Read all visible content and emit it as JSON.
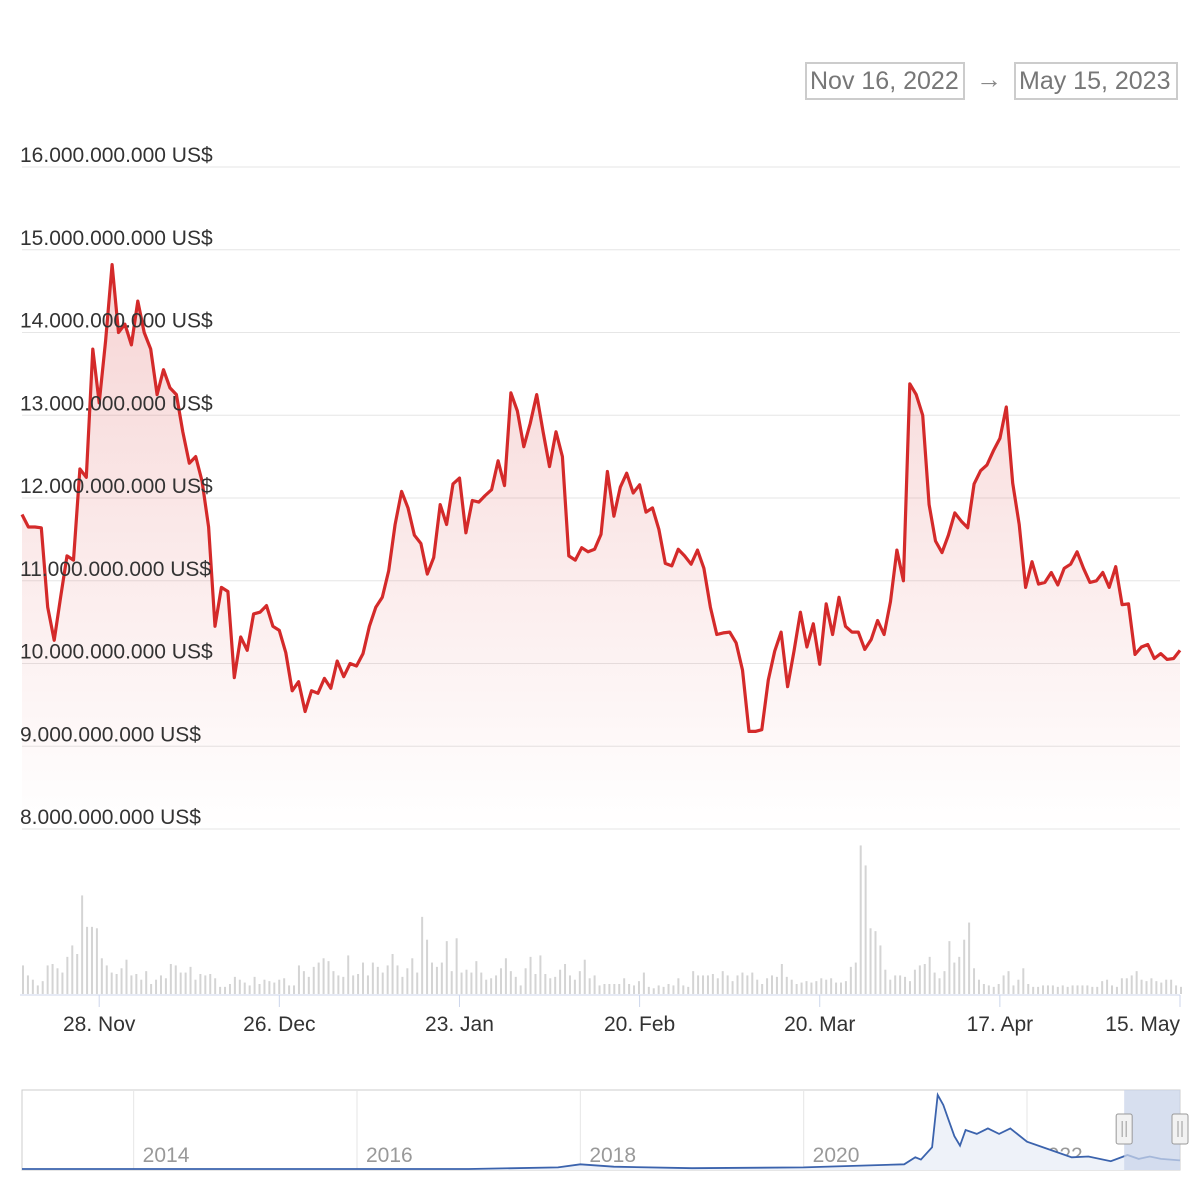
{
  "range_selector": {
    "from": "Nov 16, 2022",
    "arrow": "→",
    "to": "May 15, 2023"
  },
  "colors": {
    "price_line": "#d42a2a",
    "price_fill": "#d42a2a",
    "volume_bars": "#d4d4d4",
    "navigator_line": "#3b63ad",
    "navigator_selection": "#c9d4ea",
    "gridline": "#e6e6e6",
    "axis_text": "#333333",
    "navigator_text": "#999999"
  },
  "chart_data": {
    "type": "line",
    "x_start": "2022-11-16",
    "x_end": "2023-05-15",
    "ylim": [
      8000000000,
      16000000000
    ],
    "y_ticks": [
      "8.000.000.000 US$",
      "9.000.000.000 US$",
      "10.000.000.000 US$",
      "11.000.000.000 US$",
      "12.000.000.000 US$",
      "13.000.000.000 US$",
      "14.000.000.000 US$",
      "15.000.000.000 US$",
      "16.000.000.000 US$"
    ],
    "y_tick_values": [
      8000000000,
      9000000000,
      10000000000,
      11000000000,
      12000000000,
      13000000000,
      14000000000,
      15000000000,
      16000000000
    ],
    "x_ticks": [
      {
        "label": "28. Nov",
        "date": "2022-11-28"
      },
      {
        "label": "26. Dec",
        "date": "2022-12-26"
      },
      {
        "label": "23. Jan",
        "date": "2023-01-23"
      },
      {
        "label": "20. Feb",
        "date": "2023-02-20"
      },
      {
        "label": "20. Mar",
        "date": "2023-03-20"
      },
      {
        "label": "17. Apr",
        "date": "2023-04-17"
      },
      {
        "label": "15. May",
        "date": "2023-05-15"
      }
    ],
    "grid": true,
    "legend": "none",
    "series": [
      {
        "values": [
          11.8,
          11.65,
          11.65,
          11.64,
          10.68,
          10.28,
          10.8,
          11.3,
          11.25,
          12.35,
          12.25,
          13.8,
          13.15,
          13.9,
          14.82,
          14.0,
          14.1,
          13.85,
          14.38,
          14.0,
          13.8,
          13.25,
          13.55,
          13.33,
          13.25,
          12.8,
          12.42,
          12.5,
          12.2,
          11.65,
          10.45,
          10.92,
          10.87,
          9.83,
          10.32,
          10.16,
          10.6,
          10.62,
          10.7,
          10.45,
          10.4,
          10.13,
          9.67,
          9.78,
          9.42,
          9.67,
          9.64,
          9.82,
          9.7,
          10.03,
          9.84,
          10.0,
          9.97,
          10.12,
          10.45,
          10.68,
          10.8,
          11.12,
          11.68,
          12.08,
          11.88,
          11.55,
          11.45,
          11.08,
          11.28,
          11.92,
          11.68,
          12.17,
          12.24,
          11.58,
          11.97,
          11.95,
          12.03,
          12.1,
          12.45,
          12.15,
          13.27,
          13.05,
          12.62,
          12.9,
          13.25,
          12.8,
          12.38,
          12.8,
          12.5,
          11.3,
          11.25,
          11.4,
          11.35,
          11.38,
          11.56,
          12.32,
          11.78,
          12.13,
          12.3,
          12.06,
          12.16,
          11.83,
          11.88,
          11.62,
          11.21,
          11.18,
          11.38,
          11.3,
          11.2,
          11.37,
          11.15,
          10.68,
          10.35,
          10.37,
          10.38,
          10.25,
          9.92,
          9.18,
          9.18,
          9.2,
          9.8,
          10.15,
          10.38,
          9.72,
          10.15,
          10.62,
          10.2,
          10.48,
          9.99,
          10.72,
          10.35,
          10.8,
          10.45,
          10.38,
          10.38,
          10.17,
          10.29,
          10.52,
          10.35,
          10.75,
          11.37,
          11.0,
          13.38,
          13.25,
          13.0,
          11.92,
          11.48,
          11.34,
          11.55,
          11.82,
          11.72,
          11.64,
          12.17,
          12.33,
          12.4,
          12.57,
          12.72,
          13.1,
          12.18,
          11.68,
          10.92,
          11.23,
          10.96,
          10.98,
          11.1,
          10.95,
          11.15,
          11.2,
          11.35,
          11.15,
          10.98,
          11.0,
          11.1,
          10.92,
          11.17,
          10.71,
          10.72,
          10.11,
          10.2,
          10.23,
          10.06,
          10.12,
          10.05,
          10.06,
          10.16
        ]
      }
    ],
    "value_unit": 1000000000,
    "volume": {
      "values": [
        2.0,
        1.3,
        1.0,
        0.6,
        0.9,
        2.0,
        2.1,
        1.8,
        1.5,
        2.6,
        3.4,
        2.8,
        6.9,
        4.7,
        4.7,
        4.6,
        2.5,
        2.0,
        1.5,
        1.4,
        1.8,
        2.4,
        1.3,
        1.4,
        1.0,
        1.6,
        0.7,
        1.0,
        1.3,
        1.1,
        2.1,
        2.0,
        1.5,
        1.5,
        1.9,
        1.0,
        1.4,
        1.3,
        1.4,
        1.1,
        0.5,
        0.5,
        0.7,
        1.2,
        1.0,
        0.8,
        0.6,
        1.2,
        0.7,
        1.0,
        0.9,
        0.8,
        1.0,
        1.1,
        0.6,
        0.6,
        2.0,
        1.6,
        1.2,
        1.9,
        2.2,
        2.5,
        2.3,
        1.6,
        1.3,
        1.2,
        2.7,
        1.3,
        1.4,
        2.2,
        1.3,
        2.2,
        1.9,
        1.5,
        2.0,
        2.8,
        2.0,
        1.2,
        1.8,
        2.5,
        1.5,
        5.4,
        3.8,
        2.2,
        1.9,
        2.2,
        3.7,
        1.6,
        3.9,
        1.5,
        1.7,
        1.5,
        2.3,
        1.5,
        1.0,
        1.1,
        1.3,
        1.8,
        2.5,
        1.6,
        1.2,
        0.6,
        1.8,
        2.6,
        1.4,
        2.7,
        1.4,
        1.1,
        1.2,
        1.7,
        2.1,
        1.3,
        1.0,
        1.6,
        2.4,
        1.1,
        1.3,
        0.6,
        0.7,
        0.7,
        0.7,
        0.7,
        1.1,
        0.7,
        0.6,
        0.9,
        1.5,
        0.5,
        0.4,
        0.6,
        0.5,
        0.7,
        0.6,
        1.1,
        0.6,
        0.5,
        1.6,
        1.3,
        1.3,
        1.3,
        1.4,
        1.1,
        1.6,
        1.3,
        0.9,
        1.3,
        1.5,
        1.3,
        1.5,
        1.0,
        0.7,
        1.1,
        1.3,
        1.2,
        2.1,
        1.2,
        1.0,
        0.7,
        0.8,
        0.9,
        0.8,
        0.9,
        1.1,
        1.0,
        1.1,
        0.8,
        0.8,
        0.9,
        1.9,
        2.2,
        10.4,
        9.0,
        4.6,
        4.4,
        3.4,
        1.7,
        1.0,
        1.3,
        1.3,
        1.2,
        0.9,
        1.7,
        2.0,
        2.1,
        2.6,
        1.5,
        1.1,
        1.6,
        3.7,
        2.2,
        2.6,
        3.8,
        5.0,
        1.8,
        1.0,
        0.7,
        0.6,
        0.5,
        0.7,
        1.3,
        1.6,
        0.6,
        1.0,
        1.8,
        0.7,
        0.5,
        0.5,
        0.6,
        0.6,
        0.6,
        0.5,
        0.6,
        0.5,
        0.6,
        0.6,
        0.6,
        0.6,
        0.5,
        0.5,
        0.9,
        1.0,
        0.6,
        0.5,
        1.1,
        1.1,
        1.3,
        1.6,
        1.0,
        0.9,
        1.1,
        0.9,
        0.8,
        1.0,
        1.0,
        0.6,
        0.5
      ]
    },
    "navigator": {
      "x_labels": [
        "2014",
        "2016",
        "2018",
        "2020",
        "2022"
      ],
      "x_range_years": [
        2013.0,
        2023.37
      ],
      "selection_years": [
        2022.87,
        2023.37
      ],
      "series_years": [
        2013.0,
        2017.0,
        2017.8,
        2018.0,
        2018.3,
        2019.0,
        2020.0,
        2020.9,
        2021.0,
        2021.05,
        2021.15,
        2021.2,
        2021.25,
        2021.3,
        2021.35,
        2021.4,
        2021.45,
        2021.55,
        2021.65,
        2021.75,
        2021.85,
        2022.0,
        2022.2,
        2022.4,
        2022.55,
        2022.75,
        2022.9,
        2023.0,
        2023.1,
        2023.2,
        2023.37
      ],
      "series_level": [
        0.0,
        0.0,
        0.02,
        0.06,
        0.03,
        0.01,
        0.02,
        0.06,
        0.15,
        0.12,
        0.28,
        0.95,
        0.82,
        0.62,
        0.42,
        0.3,
        0.5,
        0.45,
        0.52,
        0.45,
        0.52,
        0.35,
        0.25,
        0.15,
        0.16,
        0.1,
        0.18,
        0.13,
        0.16,
        0.13,
        0.11
      ]
    }
  }
}
